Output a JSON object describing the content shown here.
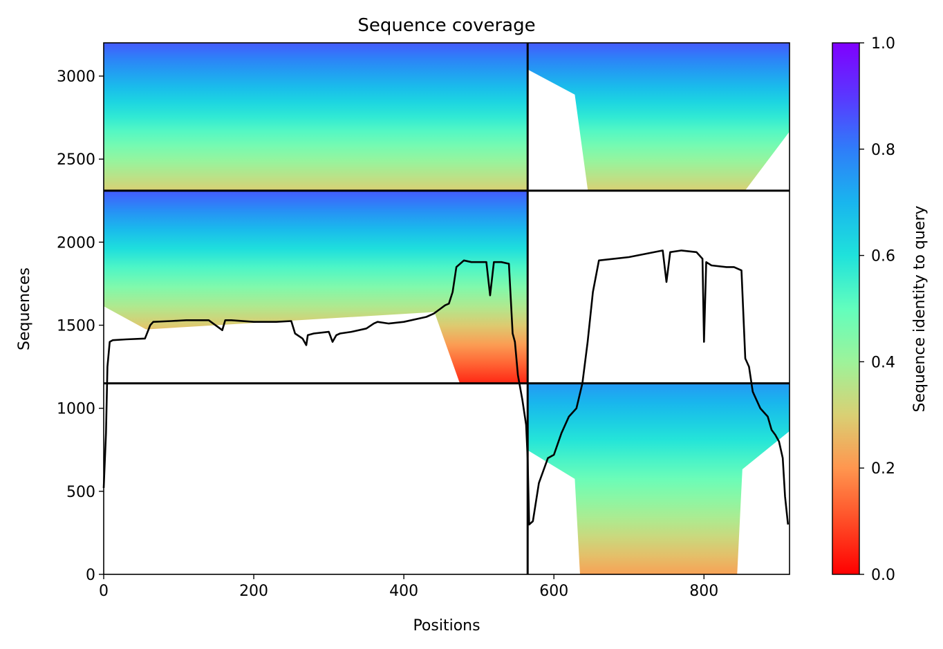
{
  "chart_data": {
    "type": "heatmap",
    "title": "Sequence coverage",
    "xlabel": "Positions",
    "ylabel": "Sequences",
    "colorbar_label": "Sequence identity to query",
    "xlim": [
      0,
      914
    ],
    "ylim": [
      0,
      3200
    ],
    "xticks": [
      0,
      200,
      400,
      600,
      800
    ],
    "yticks": [
      0,
      500,
      1000,
      1500,
      2000,
      2500,
      3000
    ],
    "colorbar_ticks": [
      "0.0",
      "0.2",
      "0.4",
      "0.6",
      "0.8",
      "1.0"
    ],
    "colorbar_range": [
      0.0,
      1.0
    ],
    "colormap": "rainbow_r",
    "segment_boundary_x": 565,
    "block_boundaries_y": [
      1150,
      2310
    ],
    "blocks": [
      {
        "x_range": [
          0,
          565
        ],
        "y_range": [
          2310,
          3200
        ],
        "identity_top": 0.85,
        "identity_bottom": 0.3,
        "coverage": "full"
      },
      {
        "x_range": [
          565,
          914
        ],
        "y_range": [
          2310,
          3200
        ],
        "identity_top": 0.85,
        "identity_bottom": 0.3,
        "coverage": "partial"
      },
      {
        "x_range": [
          0,
          565
        ],
        "y_range": [
          1150,
          2310
        ],
        "identity_top": 0.85,
        "identity_bottom": 0.05,
        "coverage": "partial"
      },
      {
        "x_range": [
          565,
          914
        ],
        "y_range": [
          1150,
          2310
        ],
        "identity_top": null,
        "identity_bottom": null,
        "coverage": "empty"
      },
      {
        "x_range": [
          0,
          565
        ],
        "y_range": [
          0,
          1150
        ],
        "identity_top": null,
        "identity_bottom": null,
        "coverage": "empty"
      },
      {
        "x_range": [
          565,
          914
        ],
        "y_range": [
          0,
          1150
        ],
        "identity_top": 0.75,
        "identity_bottom": 0.22,
        "coverage": "partial"
      }
    ],
    "coverage_line": {
      "x": [
        0,
        3,
        5,
        8,
        12,
        30,
        55,
        62,
        66,
        90,
        110,
        140,
        158,
        162,
        170,
        200,
        230,
        250,
        255,
        265,
        270,
        272,
        280,
        300,
        305,
        310,
        315,
        330,
        350,
        360,
        365,
        380,
        400,
        430,
        440,
        455,
        460,
        465,
        470,
        480,
        490,
        500,
        510,
        515,
        520,
        530,
        540,
        545,
        548,
        552,
        558,
        563,
        565,
        567,
        572,
        580,
        592,
        600,
        610,
        620,
        630,
        638,
        645,
        652,
        660,
        700,
        745,
        750,
        755,
        770,
        790,
        798,
        800,
        803,
        810,
        830,
        840,
        850,
        855,
        860,
        865,
        875,
        885,
        890,
        895,
        900,
        905,
        908,
        912
      ],
      "y": [
        520,
        850,
        1250,
        1400,
        1410,
        1415,
        1420,
        1500,
        1520,
        1525,
        1530,
        1530,
        1470,
        1530,
        1530,
        1520,
        1520,
        1525,
        1450,
        1420,
        1380,
        1440,
        1450,
        1460,
        1400,
        1440,
        1450,
        1460,
        1480,
        1510,
        1520,
        1510,
        1520,
        1550,
        1570,
        1620,
        1630,
        1700,
        1850,
        1890,
        1880,
        1880,
        1880,
        1680,
        1880,
        1880,
        1870,
        1450,
        1400,
        1200,
        1050,
        900,
        700,
        300,
        320,
        550,
        700,
        720,
        850,
        950,
        1000,
        1150,
        1400,
        1700,
        1890,
        1910,
        1950,
        1760,
        1940,
        1950,
        1940,
        1900,
        1400,
        1880,
        1860,
        1850,
        1850,
        1830,
        1300,
        1250,
        1100,
        1000,
        950,
        870,
        840,
        800,
        700,
        470,
        300
      ]
    }
  }
}
